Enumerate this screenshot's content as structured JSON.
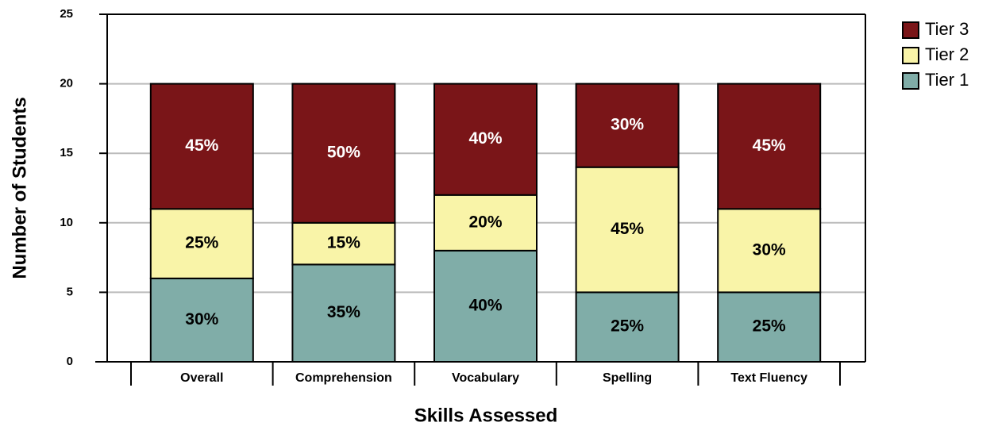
{
  "chart_data": {
    "type": "stacked-bar",
    "categories": [
      "Overall",
      "Comprehension",
      "Vocabulary",
      "Spelling",
      "Text Fluency"
    ],
    "series": [
      {
        "name": "Tier 1",
        "color": "#80ada8",
        "values": [
          6,
          7,
          8,
          5,
          5
        ],
        "value_labels": [
          "30%",
          "35%",
          "40%",
          "25%",
          "25%"
        ]
      },
      {
        "name": "Tier 2",
        "color": "#f9f4a8",
        "values": [
          5,
          3,
          4,
          9,
          6
        ],
        "value_labels": [
          "25%",
          "15%",
          "20%",
          "45%",
          "30%"
        ]
      },
      {
        "name": "Tier 3",
        "color": "#7a1518",
        "values": [
          9,
          10,
          8,
          6,
          9
        ],
        "value_labels": [
          "45%",
          "50%",
          "40%",
          "30%",
          "45%"
        ]
      }
    ],
    "ylim": [
      0,
      25
    ],
    "yticks": [
      0,
      5,
      10,
      15,
      20,
      25
    ],
    "grid": true,
    "xlabel": "Skills Assessed",
    "ylabel": "Number of Students",
    "legend": "top-right"
  }
}
